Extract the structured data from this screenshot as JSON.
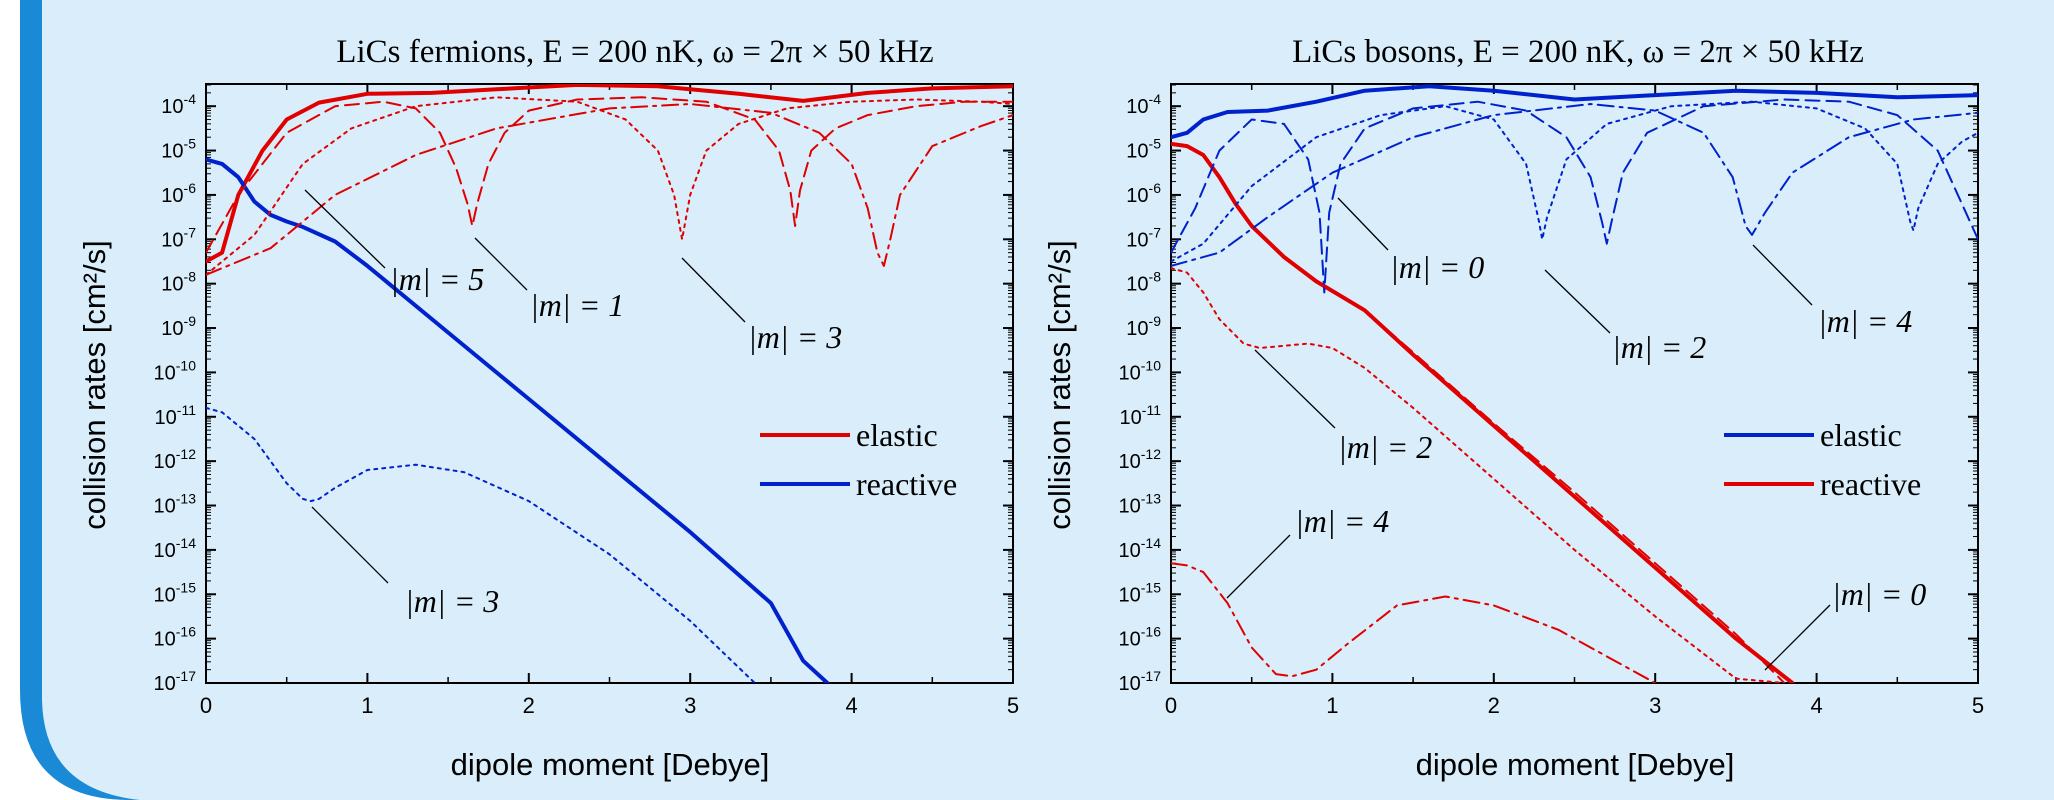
{
  "colors": {
    "background": "#d9eefa",
    "border": "#1a8ad6",
    "red": "#e00000",
    "blue": "#0022cc"
  },
  "chart_data": [
    {
      "type": "line",
      "title": "LiCs fermions, E = 200 nK, ω = 2π × 50 kHz",
      "xlabel": "dipole moment [Debye]",
      "ylabel": "collision rates [cm²/s]",
      "x_ticks": [
        "0",
        "1",
        "2",
        "3",
        "4",
        "5"
      ],
      "y_ticks": [
        "10-4",
        "10-5",
        "10-6",
        "10-7",
        "10-8",
        "10-9",
        "10-10",
        "10-11",
        "10-12",
        "10-13",
        "10-14",
        "10-15",
        "10-16",
        "10-17"
      ],
      "xlim": [
        0,
        5
      ],
      "ylim_log10": [
        -17,
        -3.5
      ],
      "legend": {
        "position": "right",
        "entries": [
          {
            "label": "elastic",
            "color": "#e00000"
          },
          {
            "label": "reactive",
            "color": "#0022cc"
          }
        ]
      },
      "series": [
        {
          "name": "elastic",
          "color": "#e00000",
          "dash": "solid",
          "width": 4,
          "x": [
            0,
            0.1,
            0.2,
            0.35,
            0.5,
            0.7,
            1.0,
            1.4,
            1.8,
            2.3,
            2.8,
            3.3,
            3.7,
            4.1,
            4.5,
            5.0
          ],
          "log10y": [
            -7.5,
            -7.3,
            -6.0,
            -5.0,
            -4.3,
            -3.92,
            -3.72,
            -3.7,
            -3.62,
            -3.52,
            -3.55,
            -3.72,
            -3.88,
            -3.7,
            -3.6,
            -3.55
          ]
        },
        {
          "name": "reactive",
          "color": "#0022cc",
          "dash": "solid",
          "width": 4,
          "x": [
            0,
            0.1,
            0.2,
            0.3,
            0.4,
            0.5,
            0.6,
            0.8,
            1.0,
            1.5,
            2.0,
            2.5,
            3.0,
            3.5,
            3.7,
            3.85
          ],
          "log10y": [
            -5.2,
            -5.3,
            -5.6,
            -6.15,
            -6.45,
            -6.6,
            -6.72,
            -7.05,
            -7.6,
            -9.1,
            -10.6,
            -12.1,
            -13.6,
            -15.2,
            -16.5,
            -17.0
          ]
        },
        {
          "name": "",
          "color": "#e00000",
          "dash": "dash",
          "width": 2,
          "x": [
            0,
            0.2,
            0.5,
            0.8,
            1.1,
            1.3,
            1.45,
            1.55,
            1.62,
            1.65,
            1.68,
            1.75,
            1.85,
            2.0,
            2.3,
            2.7,
            3.1,
            3.4,
            3.55,
            3.62,
            3.65,
            3.68,
            3.75,
            3.9,
            4.1,
            4.4,
            4.7,
            5.0
          ],
          "log10y": [
            -7.3,
            -6.0,
            -4.6,
            -4.0,
            -3.9,
            -4.05,
            -4.6,
            -5.4,
            -6.2,
            -6.7,
            -6.2,
            -5.3,
            -4.6,
            -4.1,
            -3.85,
            -3.8,
            -3.9,
            -4.3,
            -5.0,
            -5.9,
            -6.7,
            -5.9,
            -5.0,
            -4.5,
            -4.2,
            -4.0,
            -3.9,
            -3.9
          ]
        },
        {
          "name": "",
          "color": "#e00000",
          "dash": "dot",
          "width": 2,
          "x": [
            0,
            0.3,
            0.6,
            0.9,
            1.3,
            1.8,
            2.3,
            2.6,
            2.8,
            2.9,
            2.95,
            3.0,
            3.1,
            3.3,
            3.6,
            4.0,
            4.4,
            4.8,
            5.0
          ],
          "log10y": [
            -7.8,
            -6.9,
            -5.3,
            -4.5,
            -4.0,
            -3.8,
            -3.9,
            -4.3,
            -5.0,
            -6.0,
            -7.0,
            -6.0,
            -5.0,
            -4.4,
            -4.05,
            -3.9,
            -3.85,
            -3.9,
            -3.95
          ]
        },
        {
          "name": "",
          "color": "#e00000",
          "dash": "dashdot",
          "width": 2,
          "x": [
            0,
            0.4,
            0.8,
            1.3,
            1.8,
            2.5,
            3.0,
            3.5,
            3.8,
            4.0,
            4.1,
            4.16,
            4.2,
            4.24,
            4.3,
            4.5,
            4.8,
            5.0
          ],
          "log10y": [
            -7.8,
            -7.2,
            -6.0,
            -5.1,
            -4.5,
            -4.05,
            -3.95,
            -4.15,
            -4.6,
            -5.3,
            -6.3,
            -7.3,
            -7.6,
            -7.0,
            -6.0,
            -4.9,
            -4.45,
            -4.2
          ]
        },
        {
          "name": "",
          "color": "#0022cc",
          "dash": "dot",
          "width": 2,
          "x": [
            0,
            0.1,
            0.3,
            0.5,
            0.6,
            0.65,
            0.7,
            0.8,
            1.0,
            1.3,
            1.6,
            2.0,
            2.5,
            3.0,
            3.4
          ],
          "log10y": [
            -10.8,
            -10.9,
            -11.5,
            -12.5,
            -12.85,
            -12.9,
            -12.85,
            -12.6,
            -12.2,
            -12.08,
            -12.25,
            -12.9,
            -14.1,
            -15.6,
            -17.0
          ]
        }
      ],
      "annotations": [
        {
          "text": "|m| = 5"
        },
        {
          "text": "|m| = 1"
        },
        {
          "text": "|m| = 3"
        },
        {
          "text": "|m| = 3"
        }
      ]
    },
    {
      "type": "line",
      "title": "LiCs bosons, E = 200 nK, ω = 2π × 50 kHz",
      "xlabel": "dipole moment [Debye]",
      "ylabel": "collision rates [cm²/s]",
      "x_ticks": [
        "0",
        "1",
        "2",
        "3",
        "4",
        "5"
      ],
      "y_ticks": [
        "10-4",
        "10-5",
        "10-6",
        "10-7",
        "10-8",
        "10-9",
        "10-10",
        "10-11",
        "10-12",
        "10-13",
        "10-14",
        "10-15",
        "10-16",
        "10-17"
      ],
      "xlim": [
        0,
        5
      ],
      "ylim_log10": [
        -17,
        -3.5
      ],
      "legend": {
        "position": "right",
        "entries": [
          {
            "label": "elastic",
            "color": "#0022cc"
          },
          {
            "label": "reactive",
            "color": "#e00000"
          }
        ]
      },
      "series": [
        {
          "name": "elastic",
          "color": "#0022cc",
          "dash": "solid",
          "width": 4,
          "x": [
            0,
            0.1,
            0.2,
            0.35,
            0.6,
            0.9,
            1.2,
            1.6,
            2.0,
            2.5,
            3.0,
            3.5,
            4.0,
            4.5,
            5.0
          ],
          "log10y": [
            -4.7,
            -4.6,
            -4.3,
            -4.13,
            -4.1,
            -3.9,
            -3.65,
            -3.55,
            -3.65,
            -3.85,
            -3.75,
            -3.65,
            -3.7,
            -3.8,
            -3.75
          ]
        },
        {
          "name": "reactive",
          "color": "#e00000",
          "dash": "solid",
          "width": 4,
          "x": [
            0,
            0.1,
            0.2,
            0.3,
            0.4,
            0.5,
            0.7,
            0.9,
            1.2,
            1.5,
            2.0,
            2.5,
            3.0,
            3.5,
            3.85
          ],
          "log10y": [
            -4.85,
            -4.9,
            -5.1,
            -5.6,
            -6.2,
            -6.7,
            -7.4,
            -7.95,
            -8.6,
            -9.6,
            -11.2,
            -12.8,
            -14.4,
            -16.0,
            -17.0
          ]
        },
        {
          "name": "",
          "color": "#0022cc",
          "dash": "dash",
          "width": 2,
          "x": [
            0,
            0.15,
            0.3,
            0.5,
            0.7,
            0.85,
            0.92,
            0.95,
            0.98,
            1.05,
            1.2,
            1.5,
            1.9,
            2.2,
            2.45,
            2.6,
            2.67,
            2.7,
            2.73,
            2.8,
            2.95,
            3.3,
            3.8,
            4.2,
            4.5,
            4.75,
            4.9,
            5.0
          ],
          "log10y": [
            -7.3,
            -6.3,
            -5.0,
            -4.3,
            -4.4,
            -5.2,
            -6.4,
            -8.2,
            -6.4,
            -5.3,
            -4.5,
            -4.05,
            -3.9,
            -4.1,
            -4.7,
            -5.6,
            -6.6,
            -7.1,
            -6.6,
            -5.5,
            -4.6,
            -4.0,
            -3.85,
            -3.9,
            -4.2,
            -5.0,
            -6.2,
            -7.0
          ]
        },
        {
          "name": "",
          "color": "#0022cc",
          "dash": "dot",
          "width": 2,
          "x": [
            0,
            0.2,
            0.5,
            0.9,
            1.3,
            1.7,
            2.0,
            2.2,
            2.28,
            2.3,
            2.33,
            2.45,
            2.7,
            3.1,
            3.6,
            4.0,
            4.3,
            4.5,
            4.58,
            4.6,
            4.63,
            4.75,
            4.9,
            5.0
          ],
          "log10y": [
            -7.5,
            -7.1,
            -5.8,
            -4.7,
            -4.2,
            -4.0,
            -4.3,
            -5.3,
            -6.6,
            -7.0,
            -6.5,
            -5.2,
            -4.4,
            -4.0,
            -3.9,
            -4.05,
            -4.5,
            -5.3,
            -6.6,
            -6.8,
            -6.3,
            -5.3,
            -4.8,
            -4.6
          ]
        },
        {
          "name": "",
          "color": "#0022cc",
          "dash": "dashdot",
          "width": 2,
          "x": [
            0,
            0.3,
            0.6,
            1.0,
            1.5,
            2.0,
            2.6,
            3.0,
            3.3,
            3.48,
            3.56,
            3.6,
            3.68,
            3.85,
            4.2,
            4.6,
            5.0
          ],
          "log10y": [
            -7.6,
            -7.3,
            -6.5,
            -5.5,
            -4.7,
            -4.2,
            -3.95,
            -4.1,
            -4.6,
            -5.6,
            -6.7,
            -6.9,
            -6.4,
            -5.5,
            -4.7,
            -4.3,
            -4.15
          ]
        },
        {
          "name": "",
          "color": "#e00000",
          "dash": "dot",
          "width": 2,
          "x": [
            0,
            0.1,
            0.2,
            0.3,
            0.45,
            0.55,
            0.7,
            0.85,
            1.0,
            1.2,
            1.5,
            2.0,
            2.5,
            3.0,
            3.5,
            3.8
          ],
          "log10y": [
            -7.65,
            -7.75,
            -8.2,
            -8.8,
            -9.35,
            -9.45,
            -9.4,
            -9.35,
            -9.45,
            -9.9,
            -10.8,
            -12.4,
            -14.0,
            -15.5,
            -16.9,
            -17.0
          ]
        },
        {
          "name": "",
          "color": "#e00000",
          "dash": "dash",
          "width": 2,
          "x": [
            0.9,
            1.2,
            1.5,
            2.0,
            2.5,
            3.0,
            3.5,
            3.8
          ],
          "log10y": [
            -7.95,
            -8.6,
            -9.55,
            -11.15,
            -12.7,
            -14.3,
            -15.9,
            -17.0
          ]
        },
        {
          "name": "",
          "color": "#e00000",
          "dash": "dashdot",
          "width": 2,
          "x": [
            0,
            0.1,
            0.2,
            0.35,
            0.5,
            0.65,
            0.75,
            0.9,
            1.1,
            1.4,
            1.7,
            2.0,
            2.4,
            2.8,
            3.0
          ],
          "log10y": [
            -14.3,
            -14.35,
            -14.5,
            -15.2,
            -16.2,
            -16.8,
            -16.85,
            -16.7,
            -16.1,
            -15.25,
            -15.05,
            -15.25,
            -15.8,
            -16.6,
            -17.0
          ]
        }
      ],
      "annotations": [
        {
          "text": "|m| = 0"
        },
        {
          "text": "|m| = 2"
        },
        {
          "text": "|m| = 4"
        },
        {
          "text": "|m| = 2"
        },
        {
          "text": "|m| = 4"
        },
        {
          "text": "|m| = 0"
        }
      ]
    }
  ]
}
